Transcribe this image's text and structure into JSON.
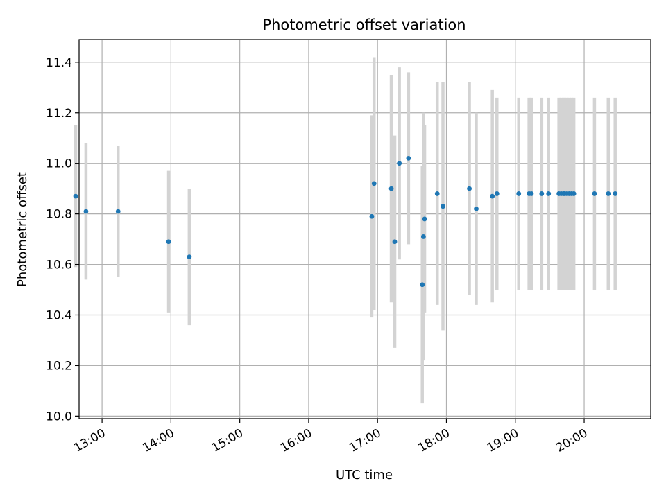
{
  "chart_data": {
    "type": "scatter",
    "title": "Photometric offset variation",
    "xlabel": "UTC time",
    "ylabel": "Photometric offset",
    "x_ticks": [
      "13:00",
      "14:00",
      "15:00",
      "16:00",
      "17:00",
      "18:00",
      "19:00",
      "20:00"
    ],
    "y_ticks": [
      "10.0",
      "10.2",
      "10.4",
      "10.6",
      "10.8",
      "11.0",
      "11.2",
      "11.4"
    ],
    "xlim": [
      "12:40",
      "20:58"
    ],
    "ylim": [
      9.99,
      11.49
    ],
    "grid": true,
    "colors": {
      "points": "#1f77b4",
      "errorbars": "#d3d3d3",
      "grid": "#b0b0b0"
    },
    "points": [
      {
        "x": "12:37",
        "y": 10.87,
        "err": 0.28
      },
      {
        "x": "12:46",
        "y": 10.81,
        "err": 0.27
      },
      {
        "x": "13:14",
        "y": 10.81,
        "err": 0.26
      },
      {
        "x": "13:58",
        "y": 10.69,
        "err": 0.28
      },
      {
        "x": "14:16",
        "y": 10.63,
        "err": 0.27
      },
      {
        "x": "16:55",
        "y": 10.79,
        "err": 0.4
      },
      {
        "x": "16:57",
        "y": 10.92,
        "err": 0.5
      },
      {
        "x": "17:12",
        "y": 10.9,
        "err": 0.45
      },
      {
        "x": "17:15",
        "y": 10.69,
        "err": 0.42
      },
      {
        "x": "17:19",
        "y": 11.0,
        "err": 0.38
      },
      {
        "x": "17:27",
        "y": 11.02,
        "err": 0.34
      },
      {
        "x": "17:39",
        "y": 10.52,
        "err": 0.47
      },
      {
        "x": "17:40",
        "y": 10.71,
        "err": 0.49
      },
      {
        "x": "17:41",
        "y": 10.78,
        "err": 0.37
      },
      {
        "x": "17:52",
        "y": 10.88,
        "err": 0.44
      },
      {
        "x": "17:57",
        "y": 10.83,
        "err": 0.49
      },
      {
        "x": "18:20",
        "y": 10.9,
        "err": 0.42
      },
      {
        "x": "18:26",
        "y": 10.82,
        "err": 0.38
      },
      {
        "x": "18:40",
        "y": 10.87,
        "err": 0.42
      },
      {
        "x": "18:44",
        "y": 10.88,
        "err": 0.38
      },
      {
        "x": "19:03",
        "y": 10.88,
        "err": 0.38
      },
      {
        "x": "19:12",
        "y": 10.88,
        "err": 0.38
      },
      {
        "x": "19:14",
        "y": 10.88,
        "err": 0.38
      },
      {
        "x": "19:23",
        "y": 10.88,
        "err": 0.38
      },
      {
        "x": "19:29",
        "y": 10.88,
        "err": 0.38
      },
      {
        "x": "19:38",
        "y": 10.88,
        "err": 0.38
      },
      {
        "x": "19:40",
        "y": 10.88,
        "err": 0.38
      },
      {
        "x": "19:42",
        "y": 10.88,
        "err": 0.38
      },
      {
        "x": "19:43",
        "y": 10.88,
        "err": 0.38
      },
      {
        "x": "19:45",
        "y": 10.88,
        "err": 0.38
      },
      {
        "x": "19:47",
        "y": 10.88,
        "err": 0.38
      },
      {
        "x": "19:49",
        "y": 10.88,
        "err": 0.38
      },
      {
        "x": "19:51",
        "y": 10.88,
        "err": 0.38
      },
      {
        "x": "20:09",
        "y": 10.88,
        "err": 0.38
      },
      {
        "x": "20:21",
        "y": 10.88,
        "err": 0.38
      },
      {
        "x": "20:27",
        "y": 10.88,
        "err": 0.38
      }
    ]
  }
}
